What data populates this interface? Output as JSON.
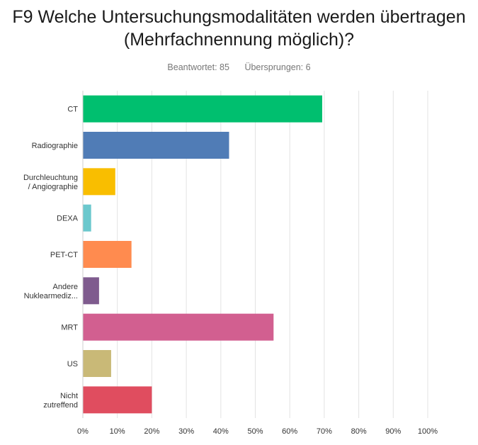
{
  "title_lines": [
    "F9 Welche Untersuchungsmodalitäten werden übertragen",
    "(Mehrfachnennung möglich)?"
  ],
  "stats": {
    "answered": "Beantwortet: 85",
    "skipped": "Übersprungen: 6"
  },
  "chart_data": {
    "type": "bar",
    "orientation": "horizontal",
    "categories": [
      [
        "CT"
      ],
      [
        "Radiographie"
      ],
      [
        "Durchleuchtung",
        "/ Angiographie"
      ],
      [
        "DEXA"
      ],
      [
        "PET-CT"
      ],
      [
        "Andere",
        "Nuklearmediz..."
      ],
      [
        "MRT"
      ],
      [
        "US"
      ],
      [
        "Nicht",
        "zutreffend"
      ]
    ],
    "values": [
      69.4,
      42.4,
      9.4,
      2.4,
      14.1,
      4.7,
      55.3,
      8.2,
      20.0
    ],
    "colors": [
      "#00bf6f",
      "#507cb6",
      "#f9be00",
      "#6bc8cd",
      "#ff8b4f",
      "#7f5b8e",
      "#d25f90",
      "#c9b977",
      "#e04d5f"
    ],
    "xlim": [
      0,
      100
    ],
    "xticks": [
      "0%",
      "10%",
      "20%",
      "30%",
      "40%",
      "50%",
      "60%",
      "70%",
      "80%",
      "90%",
      "100%"
    ],
    "grid": true
  }
}
